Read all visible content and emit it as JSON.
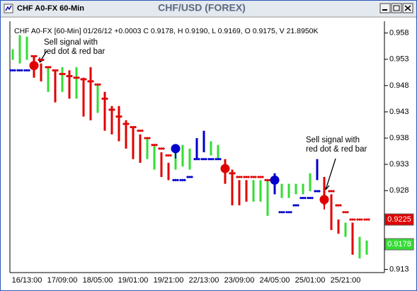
{
  "window": {
    "title": "CHF A0-FX 60-Min"
  },
  "chart_data": {
    "type": "hilo",
    "title": "CHF/USD (FOREX)",
    "subtitle": "CHF A0-FX [60-Min] 01/26/12 +0.0003 C 0.9178, H 0.9190, L 0.9169, O 0.9175, V 21.8950K",
    "categories": [
      null,
      null,
      "16/13:00",
      null,
      null,
      null,
      null,
      "17/09:00",
      null,
      null,
      null,
      null,
      "18/05:00",
      null,
      null,
      null,
      null,
      "19/01:00",
      null,
      null,
      null,
      null,
      "19/21:00",
      null,
      null,
      null,
      null,
      "22/13:00",
      null,
      null,
      null,
      null,
      "23/09:00",
      null,
      null,
      null,
      null,
      "24/05:00",
      null,
      null,
      null,
      null,
      "25/01:00",
      null,
      null,
      null,
      null,
      "25/21:00",
      null,
      null,
      null
    ],
    "high": [
      0.9549,
      0.9576,
      0.9573,
      0.9536,
      0.9522,
      0.9515,
      0.9509,
      0.9515,
      0.9509,
      0.9515,
      0.9495,
      0.9515,
      0.9482,
      0.9468,
      0.9441,
      0.9441,
      0.9414,
      0.9401,
      0.9387,
      0.938,
      0.9367,
      0.9353,
      0.9333,
      0.9367,
      0.9367,
      0.936,
      0.938,
      0.9394,
      0.9374,
      0.9367,
      0.934,
      0.932,
      0.93,
      0.93,
      0.93,
      0.93,
      0.93,
      0.9313,
      0.9293,
      0.9293,
      0.9293,
      0.9293,
      0.9313,
      0.934,
      0.9306,
      0.9273,
      0.9225,
      0.9219,
      0.9219,
      0.9192,
      0.9185
    ],
    "low": [
      0.9529,
      0.9522,
      0.9529,
      0.9495,
      0.9488,
      0.9468,
      0.9448,
      0.9468,
      0.9455,
      0.9455,
      0.9421,
      0.9414,
      0.9428,
      0.9394,
      0.9387,
      0.9374,
      0.936,
      0.934,
      0.9333,
      0.934,
      0.932,
      0.9306,
      0.93,
      0.932,
      0.9326,
      0.932,
      0.934,
      0.9353,
      0.9347,
      0.934,
      0.9293,
      0.9252,
      0.9252,
      0.9259,
      0.9259,
      0.9259,
      0.9232,
      0.9273,
      0.9266,
      0.9266,
      0.9273,
      0.9273,
      0.9279,
      0.93,
      0.9252,
      0.9205,
      0.9198,
      0.9192,
      0.9158,
      0.9151,
      0.9158
    ],
    "bar_colors": [
      "#33dd33",
      "#33dd33",
      "#33dd33",
      "#e00000",
      "#e00000",
      "#33dd33",
      "#e00000",
      "#33dd33",
      "#e00000",
      "#33dd33",
      "#e00000",
      "#e00000",
      "#33dd33",
      "#e00000",
      "#e00000",
      "#e00000",
      "#e00000",
      "#e00000",
      "#e00000",
      "#33dd33",
      "#33dd33",
      "#e00000",
      "#e00000",
      "#33dd33",
      "#33dd33",
      "#33dd33",
      "#0000cc",
      "#0000cc",
      "#33dd33",
      "#33dd33",
      "#e00000",
      "#e00000",
      "#e00000",
      "#e00000",
      "#33dd33",
      "#33dd33",
      "#33dd33",
      "#0000cc",
      "#33dd33",
      "#33dd33",
      "#33dd33",
      "#33dd33",
      "#33dd33",
      "#0000cc",
      "#e00000",
      "#e00000",
      "#e00000",
      "#33dd33",
      "#e00000",
      "#33dd33",
      "#33dd33"
    ],
    "stops": [
      0.9509,
      0.9509,
      0.9509,
      0.9536,
      0.9529,
      0.9515,
      0.9509,
      0.9502,
      0.9498,
      0.9495,
      0.9492,
      0.9488,
      0.9482,
      0.9455,
      0.9434,
      0.9421,
      0.9407,
      0.9401,
      0.9394,
      0.938,
      0.9367,
      0.936,
      0.9347,
      0.93,
      0.93,
      0.9306,
      0.934,
      0.934,
      0.934,
      0.934,
      0.932,
      0.9313,
      0.9306,
      0.9306,
      0.9306,
      0.9306,
      0.93,
      null,
      0.9239,
      0.9239,
      0.9252,
      0.9266,
      0.9266,
      0.9279,
      null,
      0.9279,
      0.9252,
      0.9239,
      0.9225,
      0.9225,
      0.9225
    ],
    "stop_colors": [
      "#0000cc",
      "#0000cc",
      "#0000cc",
      "#e00000",
      "#e00000",
      "#e00000",
      "#e00000",
      "#e00000",
      "#e00000",
      "#e00000",
      "#e00000",
      "#e00000",
      "#e00000",
      "#e00000",
      "#e00000",
      "#e00000",
      "#e00000",
      "#e00000",
      "#e00000",
      "#e00000",
      "#e00000",
      "#e00000",
      "#e00000",
      "#0000cc",
      "#0000cc",
      "#0000cc",
      "#0000cc",
      "#0000cc",
      "#0000cc",
      "#0000cc",
      "#e00000",
      "#e00000",
      "#e00000",
      "#e00000",
      "#e00000",
      "#e00000",
      "#e00000",
      null,
      "#0000cc",
      "#0000cc",
      "#0000cc",
      "#0000cc",
      "#0000cc",
      "#0000cc",
      null,
      "#e00000",
      "#e00000",
      "#e00000",
      "#e00000",
      "#e00000",
      "#e00000"
    ],
    "signals": [
      null,
      null,
      null,
      0.9518,
      null,
      null,
      null,
      null,
      null,
      null,
      null,
      null,
      null,
      null,
      null,
      null,
      null,
      null,
      null,
      null,
      null,
      null,
      null,
      0.936,
      null,
      null,
      null,
      null,
      null,
      null,
      0.9322,
      null,
      null,
      null,
      null,
      null,
      null,
      0.93,
      null,
      null,
      null,
      null,
      null,
      null,
      0.9263,
      null,
      null,
      null,
      null,
      null,
      null
    ],
    "signal_colors": [
      null,
      null,
      null,
      "#e00000",
      null,
      null,
      null,
      null,
      null,
      null,
      null,
      null,
      null,
      null,
      null,
      null,
      null,
      null,
      null,
      null,
      null,
      null,
      null,
      "#0000cc",
      null,
      null,
      null,
      null,
      null,
      null,
      "#e00000",
      null,
      null,
      null,
      null,
      null,
      null,
      "#0000cc",
      null,
      null,
      null,
      null,
      null,
      null,
      "#e00000",
      null,
      null,
      null,
      null,
      null,
      null
    ],
    "ylim": [
      0.9124,
      0.9593
    ],
    "yticks": [
      0.913,
      0.928,
      0.933,
      0.938,
      0.943,
      0.948,
      0.953,
      0.958
    ],
    "price_markers": [
      {
        "value": 0.9225,
        "color": "#e00000"
      },
      {
        "value": 0.9178,
        "color": "#33dd33"
      }
    ],
    "annotations": [
      [
        "Sell signal with",
        "red dot & red bar"
      ],
      [
        "Sell signal with",
        "red dot & red bar"
      ]
    ]
  }
}
